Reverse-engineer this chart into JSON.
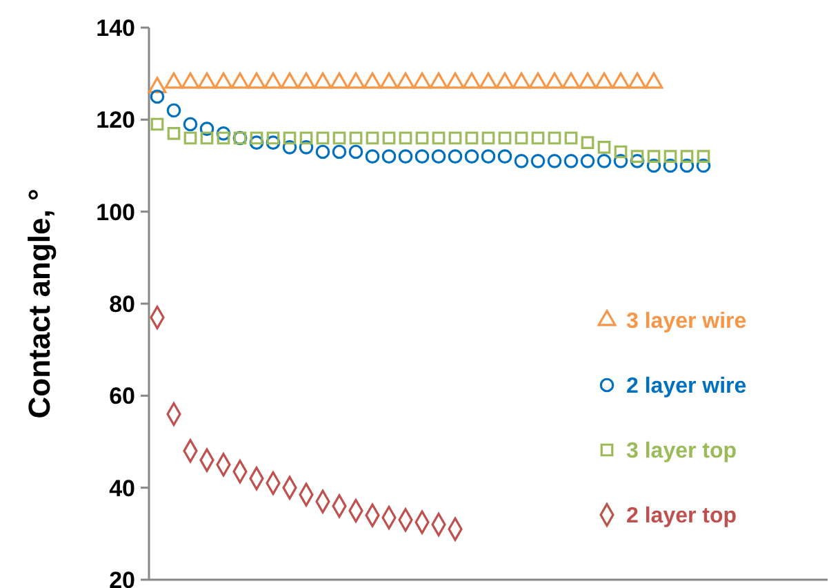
{
  "chart_data": {
    "type": "scatter",
    "ylabel": "Contact angle, °",
    "categories": [
      null,
      null,
      null,
      null,
      null,
      null,
      null,
      null,
      null,
      null,
      null,
      null,
      null,
      null,
      null,
      null,
      null,
      null,
      null,
      null,
      null,
      null,
      null,
      null,
      null,
      null,
      null,
      null,
      null,
      null,
      null,
      null,
      null,
      null,
      null,
      null,
      null,
      null,
      null,
      null,
      null
    ],
    "ylim": [
      20,
      140
    ],
    "yticks": [
      20,
      40,
      60,
      80,
      100,
      120,
      140
    ],
    "grid": false,
    "legend": "right",
    "tick_labels": "y",
    "series": [
      {
        "name": "3 layer wire",
        "color": "#f79646",
        "marker": "triangle",
        "values": [
          127,
          128,
          128,
          128,
          128,
          128,
          128,
          128,
          128,
          128,
          128,
          128,
          128,
          128,
          128,
          128,
          128,
          128,
          128,
          128,
          128,
          128,
          128,
          128,
          128,
          128,
          128,
          128,
          128,
          128,
          128,
          null,
          null,
          null,
          null,
          null,
          null,
          null,
          null,
          null,
          null
        ]
      },
      {
        "name": "2 layer wire",
        "color": "#0070c0",
        "marker": "circle",
        "values": [
          125,
          122,
          119,
          118,
          117,
          116,
          115,
          115,
          114,
          114,
          113,
          113,
          113,
          112,
          112,
          112,
          112,
          112,
          112,
          112,
          112,
          112,
          111,
          111,
          111,
          111,
          111,
          111,
          111,
          111,
          110,
          110,
          110,
          110,
          null,
          null,
          null,
          null,
          null,
          null,
          null
        ]
      },
      {
        "name": "3 layer top",
        "color": "#9bbb59",
        "marker": "square",
        "values": [
          119,
          117,
          116,
          116,
          116,
          116,
          116,
          116,
          116,
          116,
          116,
          116,
          116,
          116,
          116,
          116,
          116,
          116,
          116,
          116,
          116,
          116,
          116,
          116,
          116,
          116,
          115,
          114,
          113,
          112,
          112,
          112,
          112,
          112,
          null,
          null,
          null,
          null,
          null,
          null,
          null
        ]
      },
      {
        "name": "2 layer top",
        "color": "#c0504d",
        "marker": "diamond",
        "values": [
          77,
          56,
          48,
          46,
          45,
          43.5,
          42,
          41,
          40,
          38.5,
          37,
          36,
          35,
          34,
          33.5,
          33,
          32.5,
          32,
          31,
          null,
          null,
          null,
          null,
          null,
          null,
          null,
          null,
          null,
          null,
          null,
          null,
          null,
          null,
          null,
          null,
          null,
          null,
          null,
          null,
          null,
          null
        ]
      }
    ]
  }
}
